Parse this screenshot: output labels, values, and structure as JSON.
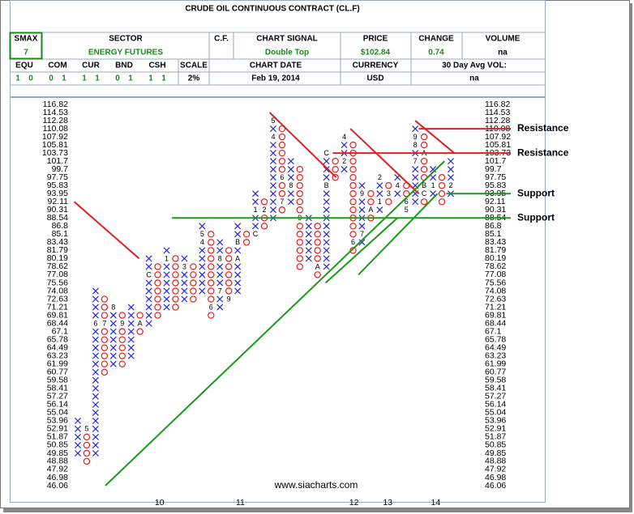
{
  "header": {
    "title": "CRUDE OIL CONTINUOUS CONTRACT (CL.F)",
    "smax": {
      "label": "SMAX",
      "value": "7"
    },
    "sector": {
      "label": "SECTOR",
      "value": "ENERGY FUTURES"
    },
    "cf_label": "C.F.",
    "signal": {
      "label": "CHART SIGNAL",
      "value": "Double Top"
    },
    "price": {
      "label": "PRICE",
      "value": "$102.84"
    },
    "change": {
      "label": "CHANGE",
      "value": "0.74"
    },
    "volume": {
      "label": "VOLUME",
      "value": "na"
    },
    "scores": [
      {
        "label": "EQU",
        "values": [
          1,
          0
        ]
      },
      {
        "label": "COM",
        "values": [
          0,
          1
        ]
      },
      {
        "label": "CUR",
        "values": [
          1,
          1
        ]
      },
      {
        "label": "BND",
        "values": [
          0,
          1
        ]
      },
      {
        "label": "CSH",
        "values": [
          1,
          1
        ]
      }
    ],
    "scale": {
      "label": "SCALE",
      "value": "2%"
    },
    "chart_date": {
      "label": "CHART DATE",
      "value": "Feb 19, 2014"
    },
    "currency": {
      "label": "CURRENCY",
      "value": "USD"
    },
    "avg_vol": {
      "label": "30 Day Avg VOL:",
      "value": "na"
    }
  },
  "chart_data": {
    "type": "point-and-figure",
    "log_scale": true,
    "watermark": "www.siacharts.com",
    "x_color": "#2828c8",
    "o_color": "#e02020",
    "ylim": [
      46.06,
      116.82
    ],
    "yticks": [
      116.82,
      114.53,
      112.28,
      110.08,
      107.92,
      105.81,
      103.73,
      101.7,
      99.7,
      97.75,
      95.83,
      93.95,
      92.11,
      90.31,
      88.54,
      86.8,
      85.1,
      83.43,
      81.79,
      80.19,
      78.62,
      77.08,
      75.56,
      74.08,
      72.63,
      71.21,
      69.81,
      68.44,
      67.1,
      65.78,
      64.49,
      63.23,
      61.99,
      60.77,
      59.58,
      58.41,
      57.27,
      56.14,
      55.04,
      53.96,
      52.91,
      51.87,
      50.85,
      49.85,
      48.88,
      47.92,
      46.98,
      46.06
    ],
    "xlim": [
      0,
      42
    ],
    "xticks": [
      {
        "value": 9.2,
        "label": "10"
      },
      {
        "value": 18.3,
        "label": "11"
      },
      {
        "value": 31.1,
        "label": "12"
      },
      {
        "value": 34.9,
        "label": "13"
      },
      {
        "value": 40.3,
        "label": "14"
      }
    ],
    "columns": [
      {
        "mark": "X",
        "from": 49.85,
        "to": 53.96
      },
      {
        "mark": "O",
        "from": 52.91,
        "to": 48.88,
        "months": [
          {
            "value": 52.91,
            "label": "5"
          }
        ]
      },
      {
        "mark": "X",
        "from": 49.85,
        "to": 74.08,
        "months": [
          {
            "value": 68.44,
            "label": "6"
          }
        ]
      },
      {
        "mark": "O",
        "from": 72.63,
        "to": 60.77,
        "months": [
          {
            "value": 68.44,
            "label": "7"
          }
        ]
      },
      {
        "mark": "X",
        "from": 61.99,
        "to": 71.21,
        "months": [
          {
            "value": 71.21,
            "label": "8"
          }
        ]
      },
      {
        "mark": "O",
        "from": 69.81,
        "to": 61.99,
        "months": [
          {
            "value": 68.44,
            "label": "9"
          }
        ]
      },
      {
        "mark": "X",
        "from": 63.23,
        "to": 71.21
      },
      {
        "mark": "O",
        "from": 69.81,
        "to": 67.1,
        "months": [
          {
            "value": 68.44,
            "label": "A"
          }
        ]
      },
      {
        "mark": "X",
        "from": 68.44,
        "to": 80.19,
        "months": [
          {
            "value": 77.08,
            "label": "C"
          }
        ]
      },
      {
        "mark": "O",
        "from": 78.62,
        "to": 69.81
      },
      {
        "mark": "X",
        "from": 71.21,
        "to": 81.79,
        "months": [
          {
            "value": 80.19,
            "label": "1"
          }
        ]
      },
      {
        "mark": "O",
        "from": 80.19,
        "to": 71.21
      },
      {
        "mark": "X",
        "from": 72.63,
        "to": 80.19,
        "months": [
          {
            "value": 78.62,
            "label": "3"
          }
        ]
      },
      {
        "mark": "O",
        "from": 78.62,
        "to": 72.63
      },
      {
        "mark": "X",
        "from": 74.08,
        "to": 86.8,
        "months": [
          {
            "value": 83.43,
            "label": "4"
          },
          {
            "value": 85.1,
            "label": "5"
          }
        ]
      },
      {
        "mark": "O",
        "from": 85.1,
        "to": 69.81,
        "months": [
          {
            "value": 71.21,
            "label": "6"
          }
        ]
      },
      {
        "mark": "X",
        "from": 71.21,
        "to": 83.43,
        "months": [
          {
            "value": 74.08,
            "label": "7"
          },
          {
            "value": 80.19,
            "label": "8"
          }
        ]
      },
      {
        "mark": "O",
        "from": 81.79,
        "to": 72.63,
        "months": [
          {
            "value": 72.63,
            "label": "9"
          }
        ]
      },
      {
        "mark": "X",
        "from": 74.08,
        "to": 86.8,
        "months": [
          {
            "value": 80.19,
            "label": "A"
          },
          {
            "value": 83.43,
            "label": "B"
          }
        ]
      },
      {
        "mark": "O",
        "from": 85.1,
        "to": 83.43
      },
      {
        "mark": "X",
        "from": 85.1,
        "to": 93.95,
        "months": [
          {
            "value": 85.1,
            "label": "C"
          },
          {
            "value": 90.31,
            "label": "1"
          }
        ]
      },
      {
        "mark": "O",
        "from": 92.11,
        "to": 86.8,
        "months": [
          {
            "value": 90.31,
            "label": "2"
          }
        ]
      },
      {
        "mark": "X",
        "from": 88.54,
        "to": 112.28,
        "months": [
          {
            "value": 107.92,
            "label": "4"
          },
          {
            "value": 112.28,
            "label": "5"
          }
        ]
      },
      {
        "mark": "O",
        "from": 110.08,
        "to": 90.31,
        "months": [
          {
            "value": 97.75,
            "label": "6"
          },
          {
            "value": 92.11,
            "label": "7"
          }
        ]
      },
      {
        "mark": "X",
        "from": 92.11,
        "to": 101.7,
        "months": [
          {
            "value": 95.83,
            "label": "8"
          }
        ]
      },
      {
        "mark": "O",
        "from": 99.7,
        "to": 78.62,
        "months": [
          {
            "value": 88.54,
            "label": "9"
          }
        ]
      },
      {
        "mark": "X",
        "from": 80.19,
        "to": 88.54
      },
      {
        "mark": "O",
        "from": 86.8,
        "to": 77.08,
        "months": [
          {
            "value": 78.62,
            "label": "A"
          }
        ]
      },
      {
        "mark": "X",
        "from": 78.62,
        "to": 103.73,
        "months": [
          {
            "value": 95.83,
            "label": "B"
          },
          {
            "value": 103.73,
            "label": "C"
          }
        ]
      },
      {
        "mark": "O",
        "from": 101.7,
        "to": 97.75
      },
      {
        "mark": "X",
        "from": 99.7,
        "to": 107.92,
        "months": [
          {
            "value": 101.7,
            "label": "2"
          },
          {
            "value": 107.92,
            "label": "4"
          }
        ]
      },
      {
        "mark": "O",
        "from": 105.81,
        "to": 81.79,
        "months": [
          {
            "value": 83.43,
            "label": "6"
          }
        ]
      },
      {
        "mark": "X",
        "from": 83.43,
        "to": 95.83,
        "months": [
          {
            "value": 85.1,
            "label": "7"
          },
          {
            "value": 93.95,
            "label": "9"
          }
        ]
      },
      {
        "mark": "O",
        "from": 93.95,
        "to": 88.54,
        "months": [
          {
            "value": 90.31,
            "label": "A"
          }
        ]
      },
      {
        "mark": "X",
        "from": 90.31,
        "to": 97.75,
        "months": [
          {
            "value": 92.11,
            "label": "1"
          },
          {
            "value": 97.75,
            "label": "2"
          }
        ]
      },
      {
        "mark": "O",
        "from": 95.83,
        "to": 92.11,
        "months": [
          {
            "value": 93.95,
            "label": "3"
          }
        ]
      },
      {
        "mark": "X",
        "from": 93.95,
        "to": 97.75,
        "months": [
          {
            "value": 95.83,
            "label": "4"
          }
        ]
      },
      {
        "mark": "O",
        "from": 95.83,
        "to": 90.31,
        "months": [
          {
            "value": 90.31,
            "label": "5"
          },
          {
            "value": 92.11,
            "label": "6"
          }
        ]
      },
      {
        "mark": "X",
        "from": 92.11,
        "to": 110.08,
        "months": [
          {
            "value": 101.7,
            "label": "7"
          },
          {
            "value": 105.81,
            "label": "8"
          },
          {
            "value": 107.92,
            "label": "9"
          }
        ]
      },
      {
        "mark": "O",
        "from": 107.92,
        "to": 92.11,
        "months": [
          {
            "value": 103.73,
            "label": "A"
          },
          {
            "value": 95.83,
            "label": "B"
          },
          {
            "value": 93.95,
            "label": "C"
          }
        ]
      },
      {
        "mark": "X",
        "from": 93.95,
        "to": 99.7,
        "months": [
          {
            "value": 95.83,
            "label": "1"
          }
        ]
      },
      {
        "mark": "O",
        "from": 97.75,
        "to": 92.11
      },
      {
        "mark": "X",
        "from": 93.95,
        "to": 101.7,
        "months": [
          {
            "value": 95.83,
            "label": "2"
          }
        ]
      }
    ],
    "trend_lines": [
      {
        "color": "#e02020",
        "x": [
          -0.4,
          6.9
        ],
        "y": [
          92.11,
          80.19
        ]
      },
      {
        "color": "#e02020",
        "x": [
          21.6,
          29.1
        ],
        "y": [
          114.53,
          97.75
        ]
      },
      {
        "color": "#e02020",
        "x": [
          30.7,
          38.4
        ],
        "y": [
          110.08,
          93.95
        ]
      },
      {
        "color": "#e02020",
        "x": [
          38.0,
          42.4
        ],
        "y": [
          112.28,
          103.73
        ]
      },
      {
        "color": "#1a9a1a",
        "x": [
          3.1,
          41.3
        ],
        "y": [
          46.06,
          101.7
        ]
      },
      {
        "color": "#1a9a1a",
        "x": [
          27.9,
          36.0
        ],
        "y": [
          75.56,
          88.54
        ]
      },
      {
        "color": "#1a9a1a",
        "x": [
          31.6,
          40.5
        ],
        "y": [
          77.08,
          93.95
        ]
      }
    ],
    "levels": [
      {
        "value": 110.08,
        "from": 38.4,
        "label": "Resistance",
        "color": "#e02020"
      },
      {
        "value": 103.73,
        "from": 28.7,
        "label": "Resistance",
        "color": "#e02020"
      },
      {
        "value": 93.95,
        "from": 41.5,
        "label": "Support",
        "color": "#1a9a1a"
      },
      {
        "value": 88.54,
        "from": 10.6,
        "label": "Support",
        "color": "#1a9a1a"
      }
    ]
  }
}
